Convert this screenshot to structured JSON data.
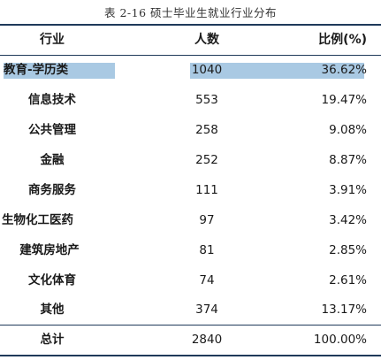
{
  "caption": "表 2-16   硕士毕业生就业行业分布",
  "headers": {
    "industry": "行业",
    "count": "人数",
    "ratio": "比例(%)"
  },
  "rows": [
    {
      "industry": "教育-学历类",
      "count": "1040",
      "ratio": "36.62%",
      "highlighted": true
    },
    {
      "industry": "信息技术",
      "count": "553",
      "ratio": "19.47%"
    },
    {
      "industry": "公共管理",
      "count": "258",
      "ratio": "9.08%"
    },
    {
      "industry": "金融",
      "count": "252",
      "ratio": "8.87%"
    },
    {
      "industry": "商务服务",
      "count": "111",
      "ratio": "3.91%"
    },
    {
      "industry": "生物化工医药",
      "count": "97",
      "ratio": "3.42%"
    },
    {
      "industry": "建筑房地产",
      "count": "81",
      "ratio": "2.85%"
    },
    {
      "industry": "文化体育",
      "count": "74",
      "ratio": "2.61%"
    },
    {
      "industry": "其他",
      "count": "374",
      "ratio": "13.17%"
    }
  ],
  "total": {
    "industry": "总计",
    "count": "2840",
    "ratio": "100.00%"
  },
  "colors": {
    "highlight": "#a9c9e3",
    "rule": "#1f3a5a"
  }
}
